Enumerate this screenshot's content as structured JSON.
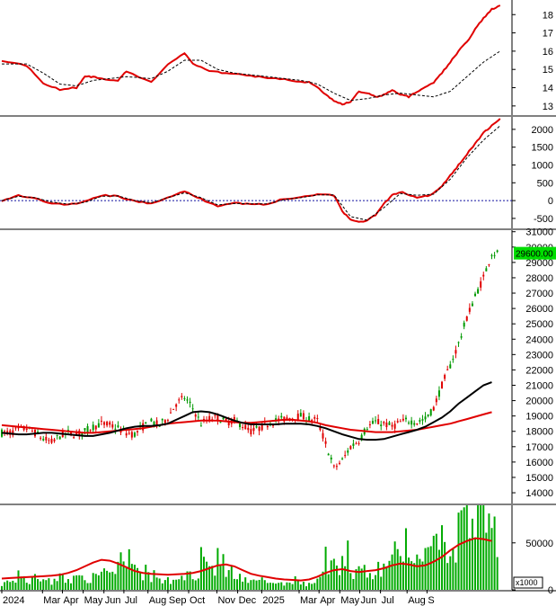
{
  "chart_data": [
    {
      "type": "line",
      "panel": "rs-indicator",
      "ylim": [
        12.5,
        18.8
      ],
      "yticks": [
        "13",
        "14",
        "15",
        "16",
        "17",
        "18"
      ],
      "series": [
        {
          "color": "#e00000",
          "style": "solid",
          "x": [
            0,
            3,
            5,
            7,
            9,
            10,
            11,
            12,
            14,
            15,
            18,
            20,
            22,
            23,
            25,
            27,
            29,
            31,
            33,
            35,
            37,
            38,
            39,
            40,
            41,
            42,
            43,
            44,
            45,
            46,
            47,
            48,
            49,
            50,
            51,
            52,
            53,
            54,
            55,
            56,
            57,
            58,
            59,
            60
          ],
          "y": [
            15.5,
            15.2,
            14.2,
            13.9,
            14.0,
            14.6,
            14.6,
            14.5,
            14.4,
            14.9,
            14.3,
            15.3,
            15.9,
            15.3,
            14.9,
            14.8,
            14.7,
            14.6,
            14.5,
            14.4,
            14.3,
            14.0,
            13.6,
            13.3,
            13.1,
            13.2,
            13.8,
            13.7,
            13.5,
            13.6,
            13.9,
            13.6,
            13.5,
            13.8,
            14.0,
            14.3,
            14.8,
            15.4,
            16.0,
            16.5,
            17.2,
            17.8,
            18.3,
            18.5
          ]
        },
        {
          "color": "#000000",
          "style": "dashed",
          "x": [
            0,
            3,
            5,
            7,
            9,
            11,
            13,
            15,
            18,
            20,
            22,
            24,
            26,
            28,
            30,
            32,
            34,
            36,
            38,
            40,
            42,
            44,
            46,
            48,
            50,
            52,
            54,
            56,
            58,
            60
          ],
          "y": [
            15.3,
            15.3,
            14.8,
            14.2,
            14.1,
            14.4,
            14.5,
            14.6,
            14.5,
            14.9,
            15.5,
            15.5,
            15.0,
            14.8,
            14.7,
            14.6,
            14.5,
            14.4,
            14.2,
            13.7,
            13.3,
            13.4,
            13.6,
            13.7,
            13.6,
            13.5,
            13.8,
            14.6,
            15.4,
            16.0
          ]
        }
      ]
    },
    {
      "type": "line",
      "panel": "oscillator",
      "ylim": [
        -780,
        2350
      ],
      "yticks": [
        "-500",
        "0",
        "500",
        "1000",
        "1500",
        "2000"
      ],
      "zero_line": true,
      "series": [
        {
          "color": "#e00000",
          "style": "solid",
          "x": [
            0,
            2,
            4,
            6,
            8,
            10,
            12,
            14,
            16,
            18,
            20,
            22,
            24,
            26,
            28,
            30,
            32,
            34,
            36,
            38,
            40,
            41,
            42,
            43,
            44,
            45,
            46,
            47,
            48,
            49,
            50,
            51,
            52,
            53,
            54,
            55,
            56,
            57,
            58,
            59,
            60
          ],
          "y": [
            0,
            150,
            60,
            -80,
            -120,
            -30,
            150,
            120,
            -20,
            -80,
            100,
            250,
            40,
            -150,
            -60,
            -100,
            -100,
            50,
            100,
            180,
            150,
            -300,
            -550,
            -600,
            -550,
            -400,
            -100,
            150,
            250,
            150,
            100,
            120,
            200,
            400,
            700,
            1000,
            1300,
            1600,
            1900,
            2100,
            2300
          ]
        },
        {
          "color": "#000000",
          "style": "dashed",
          "x": [
            0,
            2,
            4,
            6,
            8,
            10,
            12,
            14,
            16,
            18,
            20,
            22,
            24,
            26,
            28,
            30,
            32,
            34,
            36,
            38,
            40,
            42,
            44,
            46,
            48,
            50,
            52,
            54,
            56,
            58,
            60
          ],
          "y": [
            0,
            120,
            80,
            -40,
            -100,
            -50,
            120,
            130,
            0,
            -60,
            80,
            220,
            80,
            -120,
            -80,
            -90,
            -90,
            30,
            80,
            160,
            160,
            -450,
            -550,
            -200,
            200,
            150,
            180,
            600,
            1200,
            1700,
            2100
          ]
        }
      ]
    },
    {
      "type": "candlestick",
      "panel": "price",
      "ylim": [
        13300,
        31100
      ],
      "yticks": [
        "14000",
        "15000",
        "16000",
        "17000",
        "18000",
        "19000",
        "20000",
        "21000",
        "22000",
        "23000",
        "24000",
        "25000",
        "26000",
        "27000",
        "28000",
        "29000",
        "30000",
        "31000"
      ],
      "last_price_label": "29600.00",
      "series": [
        {
          "name": "",
          "color": "#009900",
          "close": [
            17900,
            18100,
            18200,
            17900,
            17500,
            17300,
            17700,
            17900,
            17800,
            18000,
            18300,
            18500,
            18400,
            18200,
            17900,
            17800,
            18300,
            18600,
            18400,
            18900,
            19800,
            20200,
            19500,
            18500,
            18800,
            18900,
            18600,
            18700,
            18400,
            18000,
            18200,
            18500,
            18700,
            18800,
            18900,
            19000,
            18800,
            18700,
            17200,
            15600,
            16100,
            17000,
            17400,
            18300,
            18600,
            18500,
            18300,
            18600,
            18700,
            18600,
            18800,
            19500,
            21000,
            22300,
            23700,
            25400,
            26800,
            28000,
            29600,
            29600
          ]
        },
        {
          "color": "#e00000",
          "style": "solid",
          "values": [
            18400,
            18350,
            18300,
            18250,
            18200,
            18150,
            18100,
            18050,
            18000,
            17950,
            17900,
            17900,
            17950,
            18000,
            18050,
            18100,
            18150,
            18200,
            18300,
            18400,
            18500,
            18550,
            18600,
            18650,
            18700,
            18700,
            18700,
            18650,
            18600,
            18550,
            18550,
            18600,
            18650,
            18700,
            18750,
            18750,
            18700,
            18650,
            18550,
            18400,
            18300,
            18200,
            18100,
            18050,
            18000,
            17950,
            17950,
            17950,
            18000,
            18050,
            18100,
            18200,
            18300,
            18400,
            18500,
            18650,
            18800,
            18950,
            19100,
            19250
          ]
        },
        {
          "color": "#000000",
          "style": "solid",
          "values": [
            17900,
            17850,
            17800,
            17800,
            17850,
            17900,
            17900,
            17850,
            17800,
            17750,
            17700,
            17700,
            17800,
            17900,
            18050,
            18200,
            18300,
            18350,
            18350,
            18400,
            18500,
            18750,
            19000,
            19250,
            19300,
            19250,
            19100,
            18900,
            18700,
            18550,
            18450,
            18450,
            18450,
            18450,
            18500,
            18500,
            18500,
            18450,
            18350,
            18200,
            18000,
            17800,
            17650,
            17500,
            17450,
            17450,
            17500,
            17650,
            17800,
            17950,
            18100,
            18300,
            18600,
            18900,
            19300,
            19800,
            20200,
            20600,
            21000,
            21200
          ]
        }
      ]
    },
    {
      "type": "bar",
      "panel": "volume",
      "ylim": [
        0,
        90000
      ],
      "yticks": [
        "0",
        "50000"
      ],
      "unit_label": "x1000",
      "series": [
        {
          "color": "#00aa00",
          "values": [
            8000,
            11000,
            14000,
            10000,
            12000,
            15000,
            9000,
            13000,
            11000,
            16000,
            14000,
            12000,
            18000,
            22000,
            35000,
            42000,
            28000,
            18000,
            14000,
            10000,
            9000,
            12000,
            15000,
            19000,
            40000,
            25000,
            30000,
            18000,
            12000,
            9000,
            8000,
            10000,
            9000,
            7000,
            8000,
            12000,
            6000,
            8000,
            16000,
            32000,
            25000,
            40000,
            20000,
            30000,
            16000,
            20000,
            24000,
            60000,
            45000,
            28000,
            38000,
            50000,
            70000,
            56000,
            42000,
            60000,
            75000,
            80000,
            72000,
            56000
          ]
        },
        {
          "color": "#e00000",
          "style": "solid",
          "values": [
            12000,
            12500,
            13000,
            13500,
            14000,
            14500,
            15000,
            16000,
            18000,
            21000,
            25000,
            29000,
            32000,
            31000,
            28000,
            24000,
            20000,
            18000,
            17000,
            16500,
            16000,
            16500,
            17000,
            18000,
            20000,
            23000,
            26000,
            27000,
            25000,
            21000,
            17000,
            15000,
            13500,
            12000,
            11000,
            10500,
            10000,
            11000,
            14000,
            18000,
            21000,
            22000,
            20000,
            19000,
            20000,
            21000,
            23000,
            26000,
            28000,
            27000,
            25000,
            26000,
            30000,
            35000,
            42000,
            48000,
            52000,
            55000,
            54000,
            52000
          ]
        }
      ]
    }
  ],
  "x_axis": {
    "labels": [
      "2024",
      "Mar",
      "Apr",
      "May",
      "Jun",
      "Jul",
      "Aug",
      "Sep",
      "Oct",
      "Nov",
      "Dec",
      "2025",
      "Mar",
      "Apr",
      "May",
      "Jun",
      "Jul",
      "Aug",
      "S"
    ],
    "positions": [
      0,
      4.9,
      7.3,
      9.8,
      12.3,
      14.7,
      17.6,
      20.0,
      22.5,
      25.9,
      28.4,
      31.3,
      35.8,
      38.2,
      40.7,
      43.1,
      45.6,
      48.8,
      51.2
    ]
  }
}
